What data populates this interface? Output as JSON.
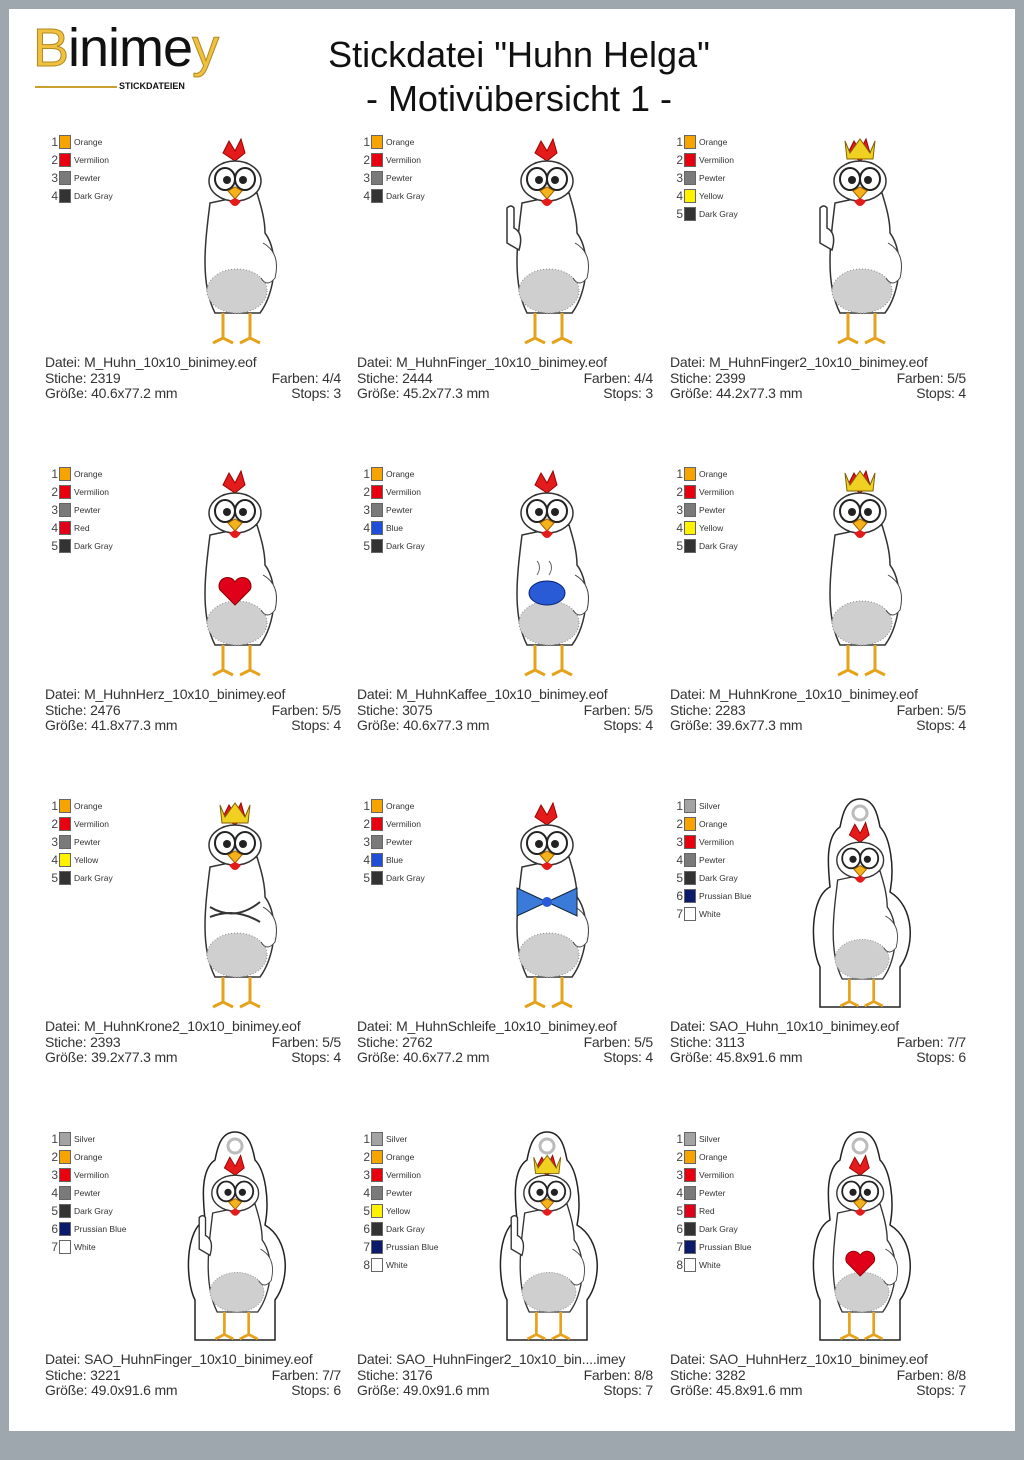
{
  "header": {
    "logo_text": "Binimey",
    "logo_sub": "STICKDATEIEN",
    "title_line1": "Stickdatei \"Huhn Helga\"",
    "title_line2": "- Motivübersicht 1 -"
  },
  "labels": {
    "file": "Datei: ",
    "stitches": "Stiche: ",
    "colors": "Farben: ",
    "size": "Größe: ",
    "stops": "Stops: "
  },
  "thread_colors": {
    "Orange": "#f7a400",
    "Vermilion": "#e8000e",
    "Pewter": "#7a7a7a",
    "Dark Gray": "#333333",
    "Yellow": "#fff200",
    "Red": "#e0001a",
    "Blue": "#1f4fd6",
    "Silver": "#a3a3a3",
    "Prussian Blue": "#0b1a6b",
    "White": "#ffffff"
  },
  "designs": [
    {
      "file": "M_Huhn_10x10_binimey.eof",
      "stitches": "2319",
      "colors": "4/4",
      "size": "40.6x77.2 mm",
      "stops": "3",
      "palette": [
        "Orange",
        "Vermilion",
        "Pewter",
        "Dark Gray"
      ],
      "features": []
    },
    {
      "file": "M_HuhnFinger_10x10_binimey.eof",
      "stitches": "2444",
      "colors": "4/4",
      "size": "45.2x77.3 mm",
      "stops": "3",
      "palette": [
        "Orange",
        "Vermilion",
        "Pewter",
        "Dark Gray"
      ],
      "features": [
        "finger"
      ]
    },
    {
      "file": "M_HuhnFinger2_10x10_binimey.eof",
      "stitches": "2399",
      "colors": "5/5",
      "size": "44.2x77.3 mm",
      "stops": "4",
      "palette": [
        "Orange",
        "Vermilion",
        "Pewter",
        "Yellow",
        "Dark Gray"
      ],
      "features": [
        "finger",
        "crown"
      ]
    },
    {
      "file": "M_HuhnHerz_10x10_binimey.eof",
      "stitches": "2476",
      "colors": "5/5",
      "size": "41.8x77.3 mm",
      "stops": "4",
      "palette": [
        "Orange",
        "Vermilion",
        "Pewter",
        "Red",
        "Dark Gray"
      ],
      "features": [
        "heart"
      ]
    },
    {
      "file": "M_HuhnKaffee_10x10_binimey.eof",
      "stitches": "3075",
      "colors": "5/5",
      "size": "40.6x77.3 mm",
      "stops": "4",
      "palette": [
        "Orange",
        "Vermilion",
        "Pewter",
        "Blue",
        "Dark Gray"
      ],
      "features": [
        "cup"
      ]
    },
    {
      "file": "M_HuhnKrone_10x10_binimey.eof",
      "stitches": "2283",
      "colors": "5/5",
      "size": "39.6x77.3 mm",
      "stops": "4",
      "palette": [
        "Orange",
        "Vermilion",
        "Pewter",
        "Yellow",
        "Dark Gray"
      ],
      "features": [
        "crown"
      ]
    },
    {
      "file": "M_HuhnKrone2_10x10_binimey.eof",
      "stitches": "2393",
      "colors": "5/5",
      "size": "39.2x77.3 mm",
      "stops": "4",
      "palette": [
        "Orange",
        "Vermilion",
        "Pewter",
        "Yellow",
        "Dark Gray"
      ],
      "features": [
        "crown",
        "arms"
      ]
    },
    {
      "file": "M_HuhnSchleife_10x10_binimey.eof",
      "stitches": "2762",
      "colors": "5/5",
      "size": "40.6x77.2 mm",
      "stops": "4",
      "palette": [
        "Orange",
        "Vermilion",
        "Pewter",
        "Blue",
        "Dark Gray"
      ],
      "features": [
        "bow"
      ]
    },
    {
      "file": "SAO_Huhn_10x10_binimey.eof",
      "stitches": "3113",
      "colors": "7/7",
      "size": "45.8x91.6 mm",
      "stops": "6",
      "palette": [
        "Silver",
        "Orange",
        "Vermilion",
        "Pewter",
        "Dark Gray",
        "Prussian Blue",
        "White"
      ],
      "features": [
        "tag"
      ]
    },
    {
      "file": "SAO_HuhnFinger_10x10_binimey.eof",
      "stitches": "3221",
      "colors": "7/7",
      "size": "49.0x91.6 mm",
      "stops": "6",
      "palette": [
        "Silver",
        "Orange",
        "Vermilion",
        "Pewter",
        "Dark Gray",
        "Prussian Blue",
        "White"
      ],
      "features": [
        "tag",
        "finger"
      ]
    },
    {
      "file": "SAO_HuhnFinger2_10x10_bin....imey",
      "stitches": "3176",
      "colors": "8/8",
      "size": "49.0x91.6 mm",
      "stops": "7",
      "palette": [
        "Silver",
        "Orange",
        "Vermilion",
        "Pewter",
        "Yellow",
        "Dark Gray",
        "Prussian Blue",
        "White"
      ],
      "features": [
        "tag",
        "finger",
        "crown"
      ]
    },
    {
      "file": "SAO_HuhnHerz_10x10_binimey.eof",
      "stitches": "3282",
      "colors": "8/8",
      "size": "45.8x91.6 mm",
      "stops": "7",
      "palette": [
        "Silver",
        "Orange",
        "Vermilion",
        "Pewter",
        "Red",
        "Dark Gray",
        "Prussian Blue",
        "White"
      ],
      "features": [
        "tag",
        "heart"
      ]
    }
  ]
}
